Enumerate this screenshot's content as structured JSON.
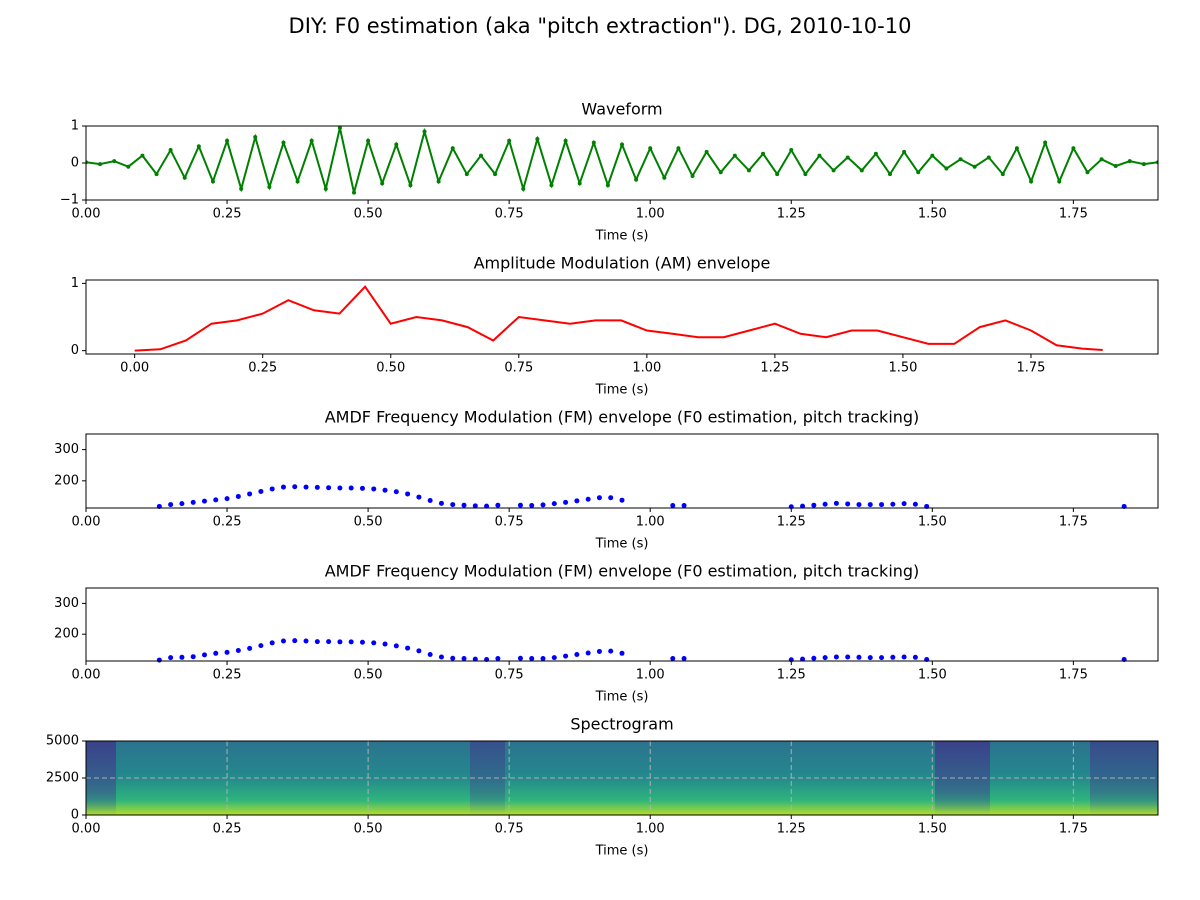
{
  "title": "DIY: F0 estimation (aka \"pitch extraction\"). DG, 2010-10-10",
  "chart_data": [
    {
      "type": "line",
      "title": "Waveform",
      "xlabel": "Time (s)",
      "color": "#008000",
      "marker": true,
      "x": [
        0,
        0.025,
        0.05,
        0.075,
        0.1,
        0.125,
        0.15,
        0.175,
        0.2,
        0.225,
        0.25,
        0.275,
        0.3,
        0.325,
        0.35,
        0.375,
        0.4,
        0.425,
        0.45,
        0.475,
        0.5,
        0.525,
        0.55,
        0.575,
        0.6,
        0.625,
        0.65,
        0.675,
        0.7,
        0.725,
        0.75,
        0.775,
        0.8,
        0.825,
        0.85,
        0.875,
        0.9,
        0.925,
        0.95,
        0.975,
        1,
        1.025,
        1.05,
        1.075,
        1.1,
        1.125,
        1.15,
        1.175,
        1.2,
        1.225,
        1.25,
        1.275,
        1.3,
        1.325,
        1.35,
        1.375,
        1.4,
        1.425,
        1.45,
        1.475,
        1.5,
        1.525,
        1.55,
        1.575,
        1.6,
        1.625,
        1.65,
        1.675,
        1.7,
        1.725,
        1.75,
        1.775,
        1.8,
        1.825,
        1.85,
        1.875,
        1.9
      ],
      "values": [
        0.02,
        -0.03,
        0.05,
        -0.1,
        0.2,
        -0.3,
        0.35,
        -0.4,
        0.45,
        -0.5,
        0.6,
        -0.7,
        0.7,
        -0.65,
        0.55,
        -0.5,
        0.6,
        -0.7,
        0.95,
        -0.8,
        0.6,
        -0.55,
        0.5,
        -0.6,
        0.85,
        -0.5,
        0.4,
        -0.3,
        0.2,
        -0.3,
        0.6,
        -0.7,
        0.65,
        -0.6,
        0.6,
        -0.55,
        0.55,
        -0.6,
        0.5,
        -0.45,
        0.4,
        -0.4,
        0.4,
        -0.35,
        0.3,
        -0.25,
        0.2,
        -0.2,
        0.25,
        -0.3,
        0.35,
        -0.3,
        0.2,
        -0.2,
        0.15,
        -0.2,
        0.25,
        -0.3,
        0.3,
        -0.25,
        0.2,
        -0.15,
        0.1,
        -0.1,
        0.15,
        -0.3,
        0.4,
        -0.5,
        0.55,
        -0.5,
        0.4,
        -0.25,
        0.1,
        -0.08,
        0.05,
        -0.03,
        0.02
      ],
      "xlim": [
        0,
        1.9
      ],
      "ylim": [
        -1,
        1
      ],
      "xticks": [
        {
          "value": 0,
          "label": "0.00"
        },
        {
          "value": 0.25,
          "label": "0.25"
        },
        {
          "value": 0.5,
          "label": "0.50"
        },
        {
          "value": 0.75,
          "label": "0.75"
        },
        {
          "value": 1,
          "label": "1.00"
        },
        {
          "value": 1.25,
          "label": "1.25"
        },
        {
          "value": 1.5,
          "label": "1.50"
        },
        {
          "value": 1.75,
          "label": "1.75"
        }
      ],
      "yticks": [
        {
          "value": -1,
          "label": "−1"
        },
        0,
        1
      ]
    },
    {
      "type": "line",
      "title": "Amplitude Modulation (AM) envelope",
      "xlabel": "Time (s)",
      "color": "#ff0000",
      "marker": false,
      "x": [
        0,
        0.05,
        0.1,
        0.15,
        0.2,
        0.25,
        0.3,
        0.35,
        0.4,
        0.45,
        0.5,
        0.55,
        0.6,
        0.65,
        0.7,
        0.75,
        0.8,
        0.85,
        0.9,
        0.95,
        1,
        1.05,
        1.1,
        1.15,
        1.2,
        1.25,
        1.3,
        1.35,
        1.4,
        1.45,
        1.5,
        1.55,
        1.6,
        1.65,
        1.7,
        1.75,
        1.8,
        1.85,
        1.89
      ],
      "values": [
        0,
        0.02,
        0.15,
        0.4,
        0.45,
        0.55,
        0.75,
        0.6,
        0.55,
        0.95,
        0.4,
        0.5,
        0.45,
        0.35,
        0.15,
        0.5,
        0.45,
        0.4,
        0.45,
        0.45,
        0.3,
        0.25,
        0.2,
        0.2,
        0.3,
        0.4,
        0.25,
        0.2,
        0.3,
        0.3,
        0.2,
        0.1,
        0.1,
        0.35,
        0.45,
        0.3,
        0.08,
        0.03,
        0.01
      ],
      "xlim": [
        -0.095,
        1.998
      ],
      "ylim": [
        -0.05,
        1.05
      ],
      "xticks": [
        {
          "value": 0,
          "label": "0.00"
        },
        {
          "value": 0.25,
          "label": "0.25"
        },
        {
          "value": 0.5,
          "label": "0.50"
        },
        {
          "value": 0.75,
          "label": "0.75"
        },
        {
          "value": 1,
          "label": "1.00"
        },
        {
          "value": 1.25,
          "label": "1.25"
        },
        {
          "value": 1.5,
          "label": "1.50"
        },
        {
          "value": 1.75,
          "label": "1.75"
        }
      ],
      "yticks": [
        0,
        1
      ]
    },
    {
      "type": "scatter",
      "title": "AMDF Frequency Modulation (FM) envelope (F0 estimation, pitch tracking)",
      "xlabel": "Time (s)",
      "color": "#0000ff",
      "x": [
        0.13,
        0.15,
        0.17,
        0.19,
        0.21,
        0.23,
        0.25,
        0.27,
        0.29,
        0.31,
        0.33,
        0.35,
        0.37,
        0.39,
        0.41,
        0.43,
        0.45,
        0.47,
        0.49,
        0.51,
        0.53,
        0.55,
        0.57,
        0.59,
        0.61,
        0.63,
        0.65,
        0.67,
        0.69,
        0.71,
        0.73,
        0.77,
        0.79,
        0.81,
        0.83,
        0.85,
        0.87,
        0.89,
        0.91,
        0.93,
        0.95,
        1.04,
        1.06,
        1.25,
        1.27,
        1.29,
        1.31,
        1.33,
        1.35,
        1.37,
        1.39,
        1.41,
        1.43,
        1.45,
        1.47,
        1.49,
        1.84
      ],
      "values": [
        118,
        124,
        127,
        131,
        135,
        139,
        143,
        150,
        158,
        166,
        174,
        180,
        181,
        180,
        179,
        178,
        177,
        177,
        176,
        174,
        170,
        165,
        158,
        148,
        137,
        128,
        124,
        122,
        120,
        119,
        122,
        122,
        121,
        123,
        127,
        131,
        136,
        141,
        146,
        146,
        138,
        121,
        121,
        117,
        119,
        122,
        125,
        128,
        126,
        124,
        124,
        124,
        125,
        127,
        125,
        118,
        118
      ],
      "xlim": [
        0,
        1.9
      ],
      "ylim": [
        113,
        350
      ],
      "xticks": [
        {
          "value": 0,
          "label": "0.00"
        },
        {
          "value": 0.25,
          "label": "0.25"
        },
        {
          "value": 0.5,
          "label": "0.50"
        },
        {
          "value": 0.75,
          "label": "0.75"
        },
        {
          "value": 1,
          "label": "1.00"
        },
        {
          "value": 1.25,
          "label": "1.25"
        },
        {
          "value": 1.5,
          "label": "1.50"
        },
        {
          "value": 1.75,
          "label": "1.75"
        }
      ],
      "yticks": [
        200,
        300
      ]
    },
    {
      "type": "scatter",
      "title": "AMDF Frequency Modulation (FM) envelope (F0 estimation, pitch tracking)",
      "xlabel": "Time (s)",
      "color": "#0000ff",
      "x": [
        0.13,
        0.15,
        0.17,
        0.19,
        0.21,
        0.23,
        0.25,
        0.27,
        0.29,
        0.31,
        0.33,
        0.35,
        0.37,
        0.39,
        0.41,
        0.43,
        0.45,
        0.47,
        0.49,
        0.51,
        0.53,
        0.55,
        0.57,
        0.59,
        0.61,
        0.63,
        0.65,
        0.67,
        0.69,
        0.71,
        0.73,
        0.77,
        0.79,
        0.81,
        0.83,
        0.85,
        0.87,
        0.89,
        0.91,
        0.93,
        0.95,
        1.04,
        1.06,
        1.25,
        1.27,
        1.29,
        1.31,
        1.33,
        1.35,
        1.37,
        1.39,
        1.41,
        1.43,
        1.45,
        1.47,
        1.49,
        1.84
      ],
      "values": [
        116,
        124,
        125,
        127,
        133,
        138,
        141,
        147,
        154,
        163,
        172,
        178,
        179,
        178,
        176,
        176,
        175,
        175,
        174,
        172,
        168,
        162,
        155,
        146,
        134,
        126,
        122,
        121,
        119,
        118,
        121,
        122,
        121,
        121,
        124,
        129,
        134,
        139,
        144,
        145,
        138,
        121,
        121,
        117,
        119,
        122,
        124,
        126,
        126,
        125,
        124,
        124,
        125,
        126,
        125,
        118,
        118
      ],
      "xlim": [
        0,
        1.9
      ],
      "ylim": [
        113,
        350
      ],
      "xticks": [
        {
          "value": 0,
          "label": "0.00"
        },
        {
          "value": 0.25,
          "label": "0.25"
        },
        {
          "value": 0.5,
          "label": "0.50"
        },
        {
          "value": 0.75,
          "label": "0.75"
        },
        {
          "value": 1,
          "label": "1.00"
        },
        {
          "value": 1.25,
          "label": "1.25"
        },
        {
          "value": 1.5,
          "label": "1.50"
        },
        {
          "value": 1.75,
          "label": "1.75"
        }
      ],
      "yticks": [
        200,
        300
      ]
    },
    {
      "type": "spectrogram",
      "title": "Spectrogram",
      "xlabel": "Time (s)",
      "grid": true,
      "xlim": [
        0,
        1.9
      ],
      "ylim": [
        0,
        5000
      ],
      "xticks": [
        {
          "value": 0,
          "label": "0.00"
        },
        {
          "value": 0.25,
          "label": "0.25"
        },
        {
          "value": 0.5,
          "label": "0.50"
        },
        {
          "value": 0.75,
          "label": "0.75"
        },
        {
          "value": 1,
          "label": "1.00"
        },
        {
          "value": 1.25,
          "label": "1.25"
        },
        {
          "value": 1.5,
          "label": "1.50"
        },
        {
          "value": 1.75,
          "label": "1.75"
        }
      ],
      "yticks": [
        0,
        2500,
        5000
      ]
    }
  ]
}
